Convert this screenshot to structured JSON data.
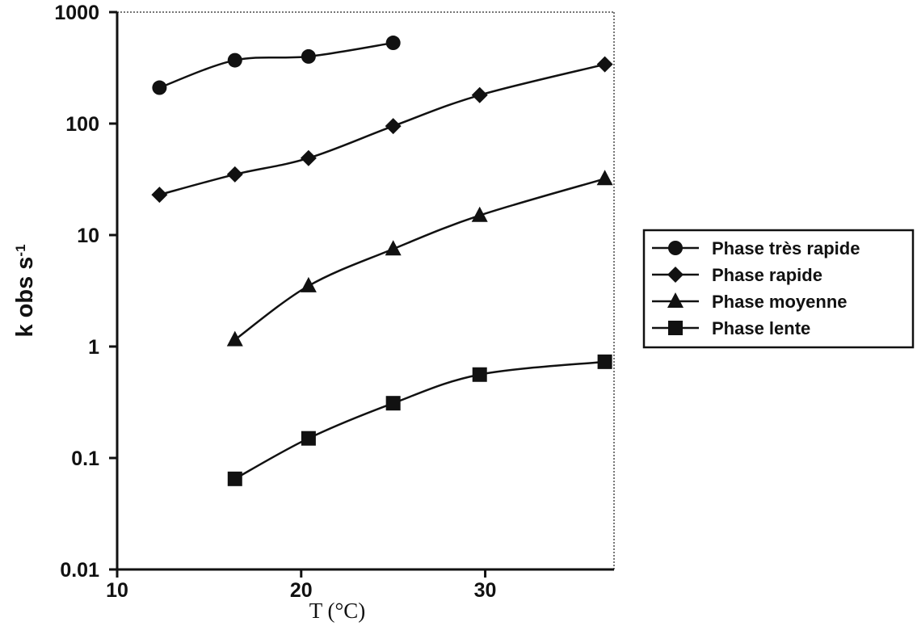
{
  "chart_data": {
    "type": "line",
    "xlabel": "T (°C)",
    "ylabel": "k obs s",
    "ylabel_sup": "-1",
    "x_scale": "linear",
    "y_scale": "log",
    "xlim": [
      10,
      37
    ],
    "ylim": [
      0.01,
      1000
    ],
    "x_ticks": [
      10,
      20,
      30
    ],
    "x_tick_labels": [
      "10",
      "20",
      "30"
    ],
    "y_ticks": [
      0.01,
      0.1,
      1,
      10,
      100,
      1000
    ],
    "y_tick_labels": [
      "0.01",
      "0.1",
      "1",
      "10",
      "100",
      "1000"
    ],
    "grid": false,
    "legend_position": "right",
    "series": [
      {
        "name": "Phase très rapide",
        "marker": "circle",
        "x": [
          12.3,
          16.4,
          20.4,
          25.0
        ],
        "y": [
          210,
          370,
          400,
          530
        ]
      },
      {
        "name": "Phase rapide",
        "marker": "diamond",
        "x": [
          12.3,
          16.4,
          20.4,
          25.0,
          29.7,
          36.5
        ],
        "y": [
          23,
          35,
          49,
          95,
          180,
          340
        ]
      },
      {
        "name": "Phase moyenne",
        "marker": "triangle",
        "x": [
          16.4,
          20.4,
          25.0,
          29.7,
          36.5
        ],
        "y": [
          1.15,
          3.5,
          7.5,
          15,
          32
        ]
      },
      {
        "name": "Phase lente",
        "marker": "square",
        "x": [
          16.4,
          20.4,
          25.0,
          29.7,
          36.5
        ],
        "y": [
          0.065,
          0.15,
          0.31,
          0.56,
          0.73
        ]
      }
    ]
  }
}
